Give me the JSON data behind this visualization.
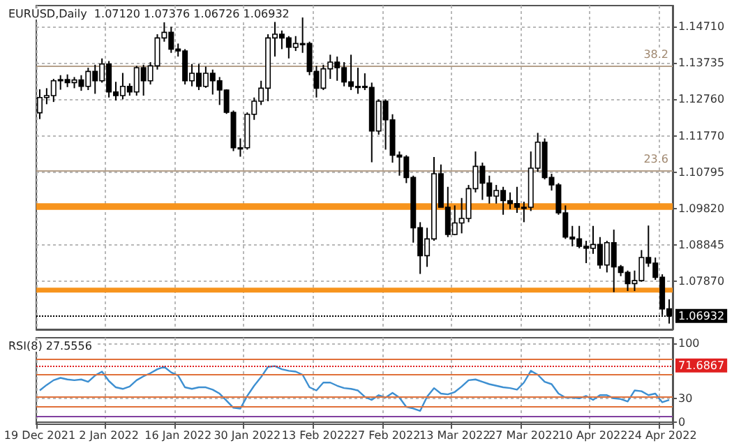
{
  "chart_data": [
    {
      "type": "candlestick",
      "title": "EURUSD,Daily  1.07120 1.07376 1.06726 1.06932",
      "categories": [
        null,
        null,
        null,
        null,
        null,
        null,
        null,
        null,
        null,
        null,
        null,
        null,
        null,
        null,
        null,
        null,
        null,
        null,
        null,
        null,
        null,
        null,
        null,
        null,
        null,
        null,
        null,
        null,
        null,
        null,
        null,
        null,
        null,
        null,
        null,
        null,
        null,
        null,
        null,
        null,
        null,
        null,
        null,
        null,
        null,
        null,
        null,
        null,
        null,
        null,
        null,
        null,
        null,
        null,
        null,
        null,
        null,
        null,
        null,
        null,
        null,
        null,
        null,
        null,
        null,
        null,
        null,
        null,
        null,
        null,
        null,
        null,
        null,
        null,
        null,
        null,
        null,
        null,
        null,
        null,
        null,
        null,
        null,
        null,
        null,
        null,
        null,
        null,
        null,
        null,
        null,
        null
      ],
      "ohlc": [
        [
          1.1239,
          1.1302,
          1.1222,
          1.128
        ],
        [
          1.128,
          1.1305,
          1.1262,
          1.1285
        ],
        [
          1.1285,
          1.133,
          1.1268,
          1.1325
        ],
        [
          1.1325,
          1.134,
          1.1301,
          1.1328
        ],
        [
          1.1328,
          1.1342,
          1.1308,
          1.132
        ],
        [
          1.132,
          1.1335,
          1.1305,
          1.1327
        ],
        [
          1.1327,
          1.134,
          1.1298,
          1.131
        ],
        [
          1.131,
          1.136,
          1.13,
          1.135
        ],
        [
          1.135,
          1.1368,
          1.129,
          1.1325
        ],
        [
          1.1325,
          1.1385,
          1.132,
          1.137
        ],
        [
          1.137,
          1.1378,
          1.128,
          1.1295
        ],
        [
          1.1295,
          1.1322,
          1.1272,
          1.1285
        ],
        [
          1.1285,
          1.1346,
          1.1275,
          1.131
        ],
        [
          1.131,
          1.1318,
          1.1285,
          1.1295
        ],
        [
          1.1295,
          1.1365,
          1.1285,
          1.136
        ],
        [
          1.136,
          1.1368,
          1.1285,
          1.1325
        ],
        [
          1.1325,
          1.1375,
          1.1315,
          1.1365
        ],
        [
          1.1365,
          1.145,
          1.1355,
          1.144
        ],
        [
          1.144,
          1.1482,
          1.143,
          1.1455
        ],
        [
          1.1455,
          1.147,
          1.14,
          1.141
        ],
        [
          1.141,
          1.1425,
          1.139,
          1.1405
        ],
        [
          1.1405,
          1.141,
          1.1315,
          1.1325
        ],
        [
          1.1325,
          1.137,
          1.131,
          1.1345
        ],
        [
          1.1345,
          1.137,
          1.13,
          1.131
        ],
        [
          1.131,
          1.1363,
          1.1306,
          1.1345
        ],
        [
          1.1345,
          1.1355,
          1.1288,
          1.1325
        ],
        [
          1.1325,
          1.1335,
          1.126,
          1.13
        ],
        [
          1.13,
          1.1302,
          1.1236,
          1.124
        ],
        [
          1.124,
          1.1245,
          1.1136,
          1.1145
        ],
        [
          1.1145,
          1.117,
          1.1121,
          1.1145
        ],
        [
          1.1145,
          1.124,
          1.114,
          1.1235
        ],
        [
          1.1235,
          1.128,
          1.122,
          1.127
        ],
        [
          1.127,
          1.1325,
          1.126,
          1.1305
        ],
        [
          1.1305,
          1.145,
          1.127,
          1.144
        ],
        [
          1.144,
          1.1483,
          1.139,
          1.145
        ],
        [
          1.145,
          1.146,
          1.141,
          1.144
        ],
        [
          1.144,
          1.1445,
          1.1385,
          1.1415
        ],
        [
          1.1415,
          1.1445,
          1.1405,
          1.1425
        ],
        [
          1.1425,
          1.1495,
          1.14,
          1.1425
        ],
        [
          1.1425,
          1.143,
          1.134,
          1.135
        ],
        [
          1.135,
          1.1365,
          1.128,
          1.1305
        ],
        [
          1.1305,
          1.1368,
          1.13,
          1.1357
        ],
        [
          1.1357,
          1.1395,
          1.133,
          1.1375
        ],
        [
          1.1375,
          1.139,
          1.1325,
          1.136
        ],
        [
          1.136,
          1.1375,
          1.131,
          1.1322
        ],
        [
          1.1322,
          1.1395,
          1.13,
          1.131
        ],
        [
          1.131,
          1.136,
          1.129,
          1.131
        ],
        [
          1.131,
          1.1345,
          1.13,
          1.1307
        ],
        [
          1.1307,
          1.132,
          1.1106,
          1.119
        ],
        [
          1.119,
          1.1275,
          1.118,
          1.127
        ],
        [
          1.127,
          1.1275,
          1.114,
          1.122
        ],
        [
          1.122,
          1.1235,
          1.1105,
          1.1125
        ],
        [
          1.1125,
          1.1135,
          1.107,
          1.112
        ],
        [
          1.112,
          1.1125,
          1.105,
          1.1065
        ],
        [
          1.1065,
          1.107,
          1.089,
          1.093
        ],
        [
          1.093,
          1.0945,
          1.0806,
          1.0855
        ],
        [
          1.0855,
          1.093,
          1.0825,
          1.09
        ],
        [
          1.09,
          1.112,
          1.0895,
          1.1075
        ],
        [
          1.1075,
          1.11,
          1.0985,
          1.0985
        ],
        [
          1.0985,
          1.104,
          1.0905,
          1.0912
        ],
        [
          1.0912,
          1.099,
          1.091,
          1.0943
        ],
        [
          1.0943,
          1.101,
          1.0915,
          1.0955
        ],
        [
          1.0955,
          1.1045,
          1.0945,
          1.1035
        ],
        [
          1.1035,
          1.1135,
          1.1025,
          1.1095
        ],
        [
          1.1095,
          1.1105,
          1.1005,
          1.105
        ],
        [
          1.105,
          1.107,
          1.0995,
          1.1015
        ],
        [
          1.1015,
          1.1045,
          1.0995,
          1.103
        ],
        [
          1.103,
          1.104,
          1.0965,
          1.1003
        ],
        [
          1.1003,
          1.1025,
          1.098,
          1.0995
        ],
        [
          1.0995,
          1.104,
          1.097,
          1.0985
        ],
        [
          1.0985,
          1.1,
          1.0945,
          1.0985
        ],
        [
          1.0985,
          1.1135,
          1.0975,
          1.109
        ],
        [
          1.109,
          1.1185,
          1.108,
          1.116
        ],
        [
          1.116,
          1.117,
          1.106,
          1.1065
        ],
        [
          1.1065,
          1.1075,
          1.103,
          1.1045
        ],
        [
          1.1045,
          1.105,
          1.0965,
          1.097
        ],
        [
          1.097,
          1.099,
          1.09,
          1.0905
        ],
        [
          1.0905,
          1.0935,
          1.088,
          1.09
        ],
        [
          1.09,
          1.0935,
          1.0875,
          1.088
        ],
        [
          1.088,
          1.0895,
          1.0835,
          1.0875
        ],
        [
          1.0875,
          1.0935,
          1.086,
          1.0885
        ],
        [
          1.0885,
          1.0905,
          1.082,
          1.083
        ],
        [
          1.083,
          1.0895,
          1.081,
          1.089
        ],
        [
          1.089,
          1.0925,
          1.0757,
          1.0825
        ],
        [
          1.0825,
          1.083,
          1.08,
          1.081
        ],
        [
          1.081,
          1.0815,
          1.076,
          1.078
        ],
        [
          1.078,
          1.0815,
          1.076,
          1.0788
        ],
        [
          1.0788,
          1.087,
          1.0785,
          1.085
        ],
        [
          1.085,
          1.0936,
          1.0825,
          1.0835
        ],
        [
          1.0835,
          1.085,
          1.079,
          1.0797
        ],
        [
          1.0797,
          1.0805,
          1.0695,
          1.0712
        ],
        [
          1.0712,
          1.07376,
          1.06726,
          1.06932
        ]
      ],
      "ylim": [
        1.0657,
        1.1527
      ],
      "yticks": [
        {
          "value": 1.1471,
          "label": "1.14710"
        },
        1.13735,
        {
          "value": 1.1276,
          "label": "1.12760"
        },
        {
          "value": 1.1177,
          "label": "1.11770"
        },
        1.10795,
        {
          "value": 1.0982,
          "label": "1.09820"
        },
        1.08845,
        {
          "value": 1.0787,
          "label": "1.07870"
        }
      ],
      "grid": true,
      "tick_labels": "y",
      "ref_lines": [
        {
          "axis": "y",
          "value": 1.1366,
          "color": "#b5a08a"
        },
        {
          "axis": "y",
          "value": 1.1085,
          "color": "#b5a08a"
        },
        {
          "axis": "y",
          "value": 1.06932,
          "label": "1.06932",
          "color": "#000000",
          "line_style": "dotted"
        }
      ],
      "annotations": [
        {
          "text": "38.2",
          "y": 1.1366
        },
        {
          "text": "23.6",
          "y": 1.1085
        }
      ],
      "bands": [
        {
          "axis": "y",
          "from": 1.0978,
          "to": 1.0996,
          "color": "#f7941d"
        },
        {
          "axis": "y",
          "from": 1.0756,
          "to": 1.0769,
          "color": "#f7941d"
        }
      ]
    },
    {
      "type": "line",
      "title": "RSI(8) 27.5556",
      "categories": [
        "19 Dec 2021",
        null,
        null,
        null,
        null,
        null,
        null,
        null,
        null,
        null,
        "2 Jan 2022",
        null,
        null,
        null,
        null,
        null,
        null,
        null,
        null,
        null,
        "16 Jan 2022",
        null,
        null,
        null,
        null,
        null,
        null,
        null,
        null,
        null,
        "30 Jan 2022",
        null,
        null,
        null,
        null,
        null,
        null,
        null,
        null,
        null,
        "13 Feb 2022",
        null,
        null,
        null,
        null,
        null,
        null,
        null,
        null,
        null,
        "27 Feb 2022",
        null,
        null,
        null,
        null,
        null,
        null,
        null,
        null,
        null,
        "13 Mar 2022",
        null,
        null,
        null,
        null,
        null,
        null,
        null,
        null,
        null,
        "27 Mar 2022",
        null,
        null,
        null,
        null,
        null,
        null,
        null,
        null,
        null,
        "10 Apr 2022",
        null,
        null,
        null,
        null,
        null,
        null,
        null,
        null,
        null,
        "24 Apr 2022",
        null
      ],
      "series": [
        {
          "color": "#3d8fd1",
          "values": [
            40,
            47,
            53,
            56,
            54,
            53,
            54,
            51,
            59,
            64,
            52,
            44,
            42,
            45,
            53,
            58,
            62,
            67,
            70,
            63,
            59,
            44,
            42,
            44,
            44,
            41,
            36,
            27,
            18,
            17,
            33,
            46,
            57,
            70,
            71,
            67,
            65,
            64,
            60,
            44,
            40,
            50,
            50,
            46,
            43,
            42,
            40,
            32,
            28,
            34,
            31,
            37,
            31,
            19,
            17,
            14,
            32,
            43,
            36,
            35,
            38,
            45,
            53,
            54,
            51,
            48,
            46,
            44,
            43,
            41,
            50,
            65,
            60,
            51,
            48,
            36,
            31,
            31,
            30,
            33,
            28,
            34,
            34,
            30,
            29,
            26,
            40,
            39,
            34,
            36,
            25,
            28
          ]
        }
      ],
      "ylim": [
        -3,
        107
      ],
      "yticks": [
        100,
        30,
        0
      ],
      "grid": true,
      "marker": "none",
      "ref_lines": [
        {
          "axis": "y",
          "value": 80,
          "color": "#e0703a"
        },
        {
          "axis": "y",
          "value": 71.6867,
          "label": "71.6867",
          "color": "#e02020",
          "line_style": "dotted"
        },
        {
          "axis": "y",
          "value": 60,
          "color": "#e0703a"
        },
        {
          "axis": "y",
          "value": 32,
          "color": "#e0703a"
        },
        {
          "axis": "y",
          "value": 19,
          "color": "#e0703a"
        },
        {
          "axis": "y",
          "value": 7,
          "color": "#8040a0"
        }
      ]
    }
  ]
}
